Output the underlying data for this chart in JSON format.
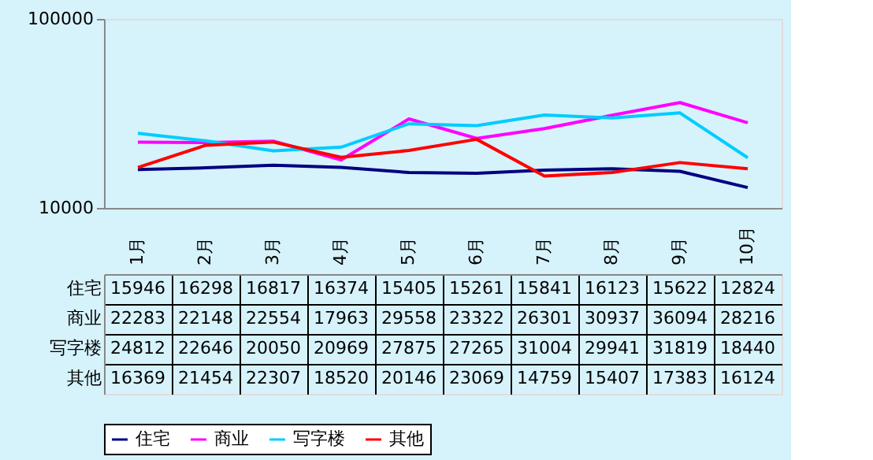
{
  "chart_data": {
    "type": "line",
    "categories": [
      "1月",
      "2月",
      "3月",
      "4月",
      "5月",
      "6月",
      "7月",
      "8月",
      "9月",
      "10月"
    ],
    "series": [
      {
        "name": "住宅",
        "color": "#000080",
        "values": [
          15946,
          16298,
          16817,
          16374,
          15405,
          15261,
          15841,
          16123,
          15622,
          12824
        ]
      },
      {
        "name": "商业",
        "color": "#ff00ff",
        "values": [
          22283,
          22148,
          22554,
          17963,
          29558,
          23322,
          26301,
          30937,
          36094,
          28216
        ]
      },
      {
        "name": "写字楼",
        "color": "#00ccff",
        "values": [
          24812,
          22646,
          20050,
          20969,
          27875,
          27265,
          31004,
          29941,
          31819,
          18440
        ]
      },
      {
        "name": "其他",
        "color": "#ff0000",
        "values": [
          16369,
          21454,
          22307,
          18520,
          20146,
          23069,
          14759,
          15407,
          17383,
          16124
        ]
      }
    ],
    "log": true,
    "ylim": [
      10000,
      100000
    ],
    "yticks": [
      10000,
      100000
    ],
    "grid": false,
    "legend": "bottom",
    "data_labels": true
  }
}
